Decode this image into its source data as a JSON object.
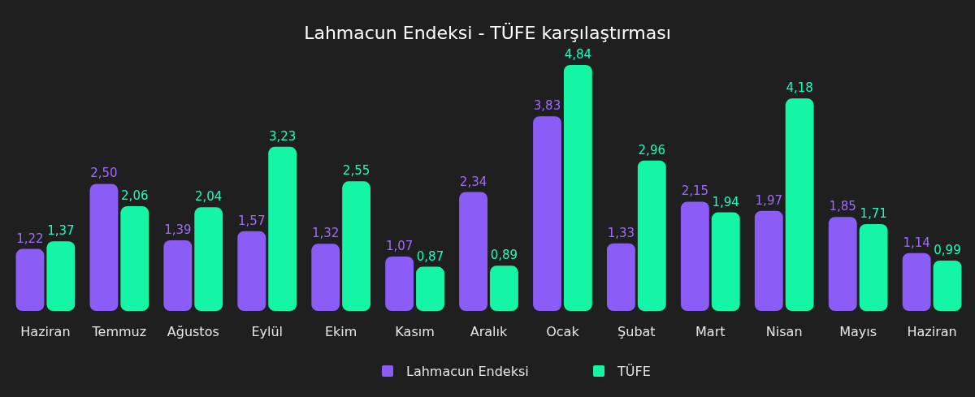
{
  "chart_data": {
    "type": "bar",
    "title": "Lahmacun Endeksi - TÜFE karşılaştırması",
    "categories": [
      "Haziran",
      "Temmuz",
      "Ağustos",
      "Eylül",
      "Ekim",
      "Kasım",
      "Aralık",
      "Ocak",
      "Şubat",
      "Mart",
      "Nisan",
      "Mayıs",
      "Haziran"
    ],
    "series": [
      {
        "name": "Lahmacun Endeksi",
        "color": "#8b5cf6",
        "values": [
          1.22,
          2.5,
          1.39,
          1.57,
          1.32,
          1.07,
          2.34,
          3.83,
          1.33,
          2.15,
          1.97,
          1.85,
          1.14
        ],
        "value_labels": [
          "1,22",
          "2,50",
          "1,39",
          "1,57",
          "1,32",
          "1,07",
          "2,34",
          "3,83",
          "1,33",
          "2,15",
          "1,97",
          "1,85",
          "1,14"
        ]
      },
      {
        "name": "TÜFE",
        "color": "#14f5a5",
        "values": [
          1.37,
          2.06,
          2.04,
          3.23,
          2.55,
          0.87,
          0.89,
          4.84,
          2.96,
          1.94,
          4.18,
          1.71,
          0.99
        ],
        "value_labels": [
          "1,37",
          "2,06",
          "2,04",
          "3,23",
          "2,55",
          "0,87",
          "0,89",
          "4,84",
          "2,96",
          "1,94",
          "4,18",
          "1,71",
          "0,99"
        ]
      }
    ],
    "legend": "bottom"
  }
}
